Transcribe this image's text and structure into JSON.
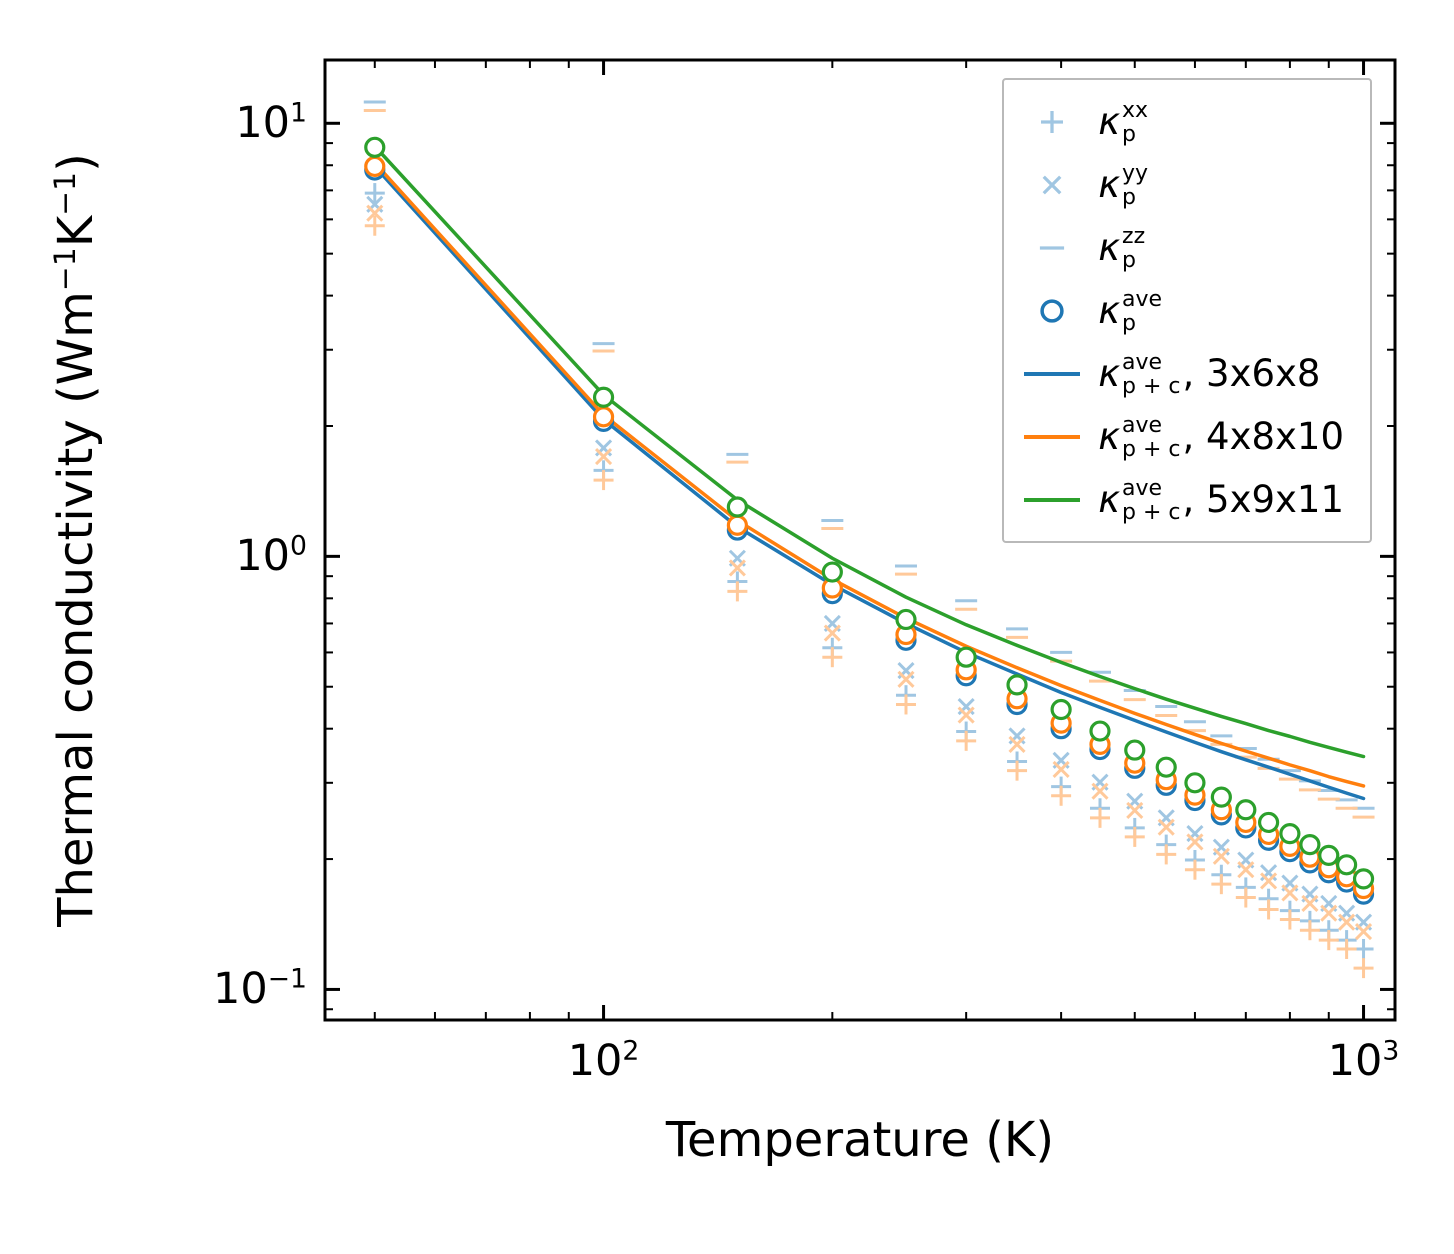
{
  "figure": {
    "xlabel": "Temperature (K)",
    "ylabel_parts": [
      {
        "text": "Thermal conductivity (Wm"
      },
      {
        "sup": "−1"
      },
      {
        "text": "K"
      },
      {
        "sup": "−1"
      },
      {
        "text": ")"
      }
    ],
    "x_ticks": [
      {
        "value": 100,
        "base": "10",
        "exp": "2"
      },
      {
        "value": 1000,
        "base": "10",
        "exp": "3"
      }
    ],
    "y_ticks": [
      {
        "value": 10,
        "base": "10",
        "exp": "1"
      },
      {
        "value": 1,
        "base": "10",
        "exp": "0"
      },
      {
        "value": 0.1,
        "base": "10",
        "exp": "−1"
      }
    ],
    "xlim": [
      43,
      1100
    ],
    "ylim": [
      0.085,
      14
    ]
  },
  "colors": {
    "blue": "#1f77b4",
    "orange": "#ff7f0e",
    "green": "#2ca02c",
    "pale_blue": "#a0c6e2",
    "pale_orange": "#ffc99a",
    "legend_border": "#b9b9b9",
    "axis": "#000000"
  },
  "legend": {
    "items": [
      {
        "marker": "plus",
        "color_key": "pale_blue",
        "kappa": "κ",
        "sup": "xx",
        "sub": "p",
        "suffix": ""
      },
      {
        "marker": "cross",
        "color_key": "pale_blue",
        "kappa": "κ",
        "sup": "yy",
        "sub": "p",
        "suffix": ""
      },
      {
        "marker": "dash",
        "color_key": "pale_blue",
        "kappa": "κ",
        "sup": "zz",
        "sub": "p",
        "suffix": ""
      },
      {
        "marker": "circle",
        "color_key": "blue",
        "kappa": "κ",
        "sup": "ave",
        "sub": "p",
        "suffix": ""
      },
      {
        "marker": "line",
        "color_key": "blue",
        "kappa": "κ",
        "sup": "ave",
        "sub": "p + c",
        "suffix": ", 3x6x8"
      },
      {
        "marker": "line",
        "color_key": "orange",
        "kappa": "κ",
        "sup": "ave",
        "sub": "p + c",
        "suffix": ", 4x8x10"
      },
      {
        "marker": "line",
        "color_key": "green",
        "kappa": "κ",
        "sup": "ave",
        "sub": "p + c",
        "suffix": ", 5x9x11"
      }
    ]
  },
  "chart_data": {
    "type": "scatter",
    "title": "",
    "xlabel": "Temperature (K)",
    "ylabel": "Thermal conductivity (Wm^-1 K^-1)",
    "x_scale": "log",
    "y_scale": "log",
    "xlim": [
      43,
      1100
    ],
    "ylim": [
      0.085,
      14
    ],
    "grid": false,
    "legend_position": "upper right",
    "x": [
      50,
      100,
      150,
      200,
      250,
      300,
      350,
      400,
      450,
      500,
      550,
      600,
      650,
      700,
      750,
      800,
      850,
      900,
      950,
      1000
    ],
    "series": [
      {
        "name": "kappa_p_xx_pale_blue",
        "style": "marker",
        "marker": "plus",
        "color_key": "pale_blue",
        "values": [
          6.9,
          1.58,
          0.875,
          0.615,
          0.478,
          0.394,
          0.336,
          0.294,
          0.262,
          0.236,
          0.216,
          0.199,
          0.184,
          0.172,
          0.162,
          0.152,
          0.144,
          0.137,
          0.13,
          0.124
        ]
      },
      {
        "name": "kappa_p_xx_pale_orange",
        "style": "marker",
        "marker": "plus",
        "color_key": "pale_orange",
        "values": [
          5.8,
          1.5,
          0.83,
          0.585,
          0.455,
          0.375,
          0.32,
          0.28,
          0.249,
          0.225,
          0.205,
          0.189,
          0.175,
          0.163,
          0.153,
          0.145,
          0.137,
          0.13,
          0.124,
          0.112
        ]
      },
      {
        "name": "kappa_p_yy_pale_blue",
        "style": "marker",
        "marker": "cross",
        "color_key": "pale_blue",
        "values": [
          6.5,
          1.78,
          0.99,
          0.7,
          0.545,
          0.45,
          0.385,
          0.338,
          0.301,
          0.272,
          0.249,
          0.229,
          0.213,
          0.199,
          0.186,
          0.176,
          0.166,
          0.158,
          0.15,
          0.143
        ]
      },
      {
        "name": "kappa_p_yy_pale_orange",
        "style": "marker",
        "marker": "cross",
        "color_key": "pale_orange",
        "values": [
          6.2,
          1.7,
          0.94,
          0.665,
          0.52,
          0.43,
          0.368,
          0.322,
          0.287,
          0.259,
          0.237,
          0.219,
          0.203,
          0.189,
          0.178,
          0.167,
          0.158,
          0.15,
          0.143,
          0.136
        ]
      },
      {
        "name": "kappa_p_zz_pale_blue",
        "style": "marker",
        "marker": "dash",
        "color_key": "pale_blue",
        "values": [
          11.2,
          3.1,
          1.72,
          1.21,
          0.95,
          0.79,
          0.68,
          0.6,
          0.54,
          0.49,
          0.45,
          0.415,
          0.385,
          0.36,
          0.34,
          0.32,
          0.303,
          0.288,
          0.274,
          0.262
        ]
      },
      {
        "name": "kappa_p_zz_pale_orange",
        "style": "marker",
        "marker": "dash",
        "color_key": "pale_orange",
        "values": [
          10.7,
          2.98,
          1.65,
          1.16,
          0.91,
          0.755,
          0.65,
          0.573,
          0.515,
          0.467,
          0.429,
          0.396,
          0.368,
          0.344,
          0.324,
          0.306,
          0.289,
          0.275,
          0.262,
          0.25
        ]
      },
      {
        "name": "kappa_p+c_ave_3x6x8_line",
        "style": "line",
        "color_key": "blue",
        "values": [
          7.95,
          2.07,
          1.17,
          0.86,
          0.7,
          0.6,
          0.535,
          0.485,
          0.448,
          0.418,
          0.393,
          0.372,
          0.354,
          0.339,
          0.326,
          0.314,
          0.303,
          0.293,
          0.284,
          0.276
        ]
      },
      {
        "name": "kappa_p+c_ave_4x8x10_line",
        "style": "line",
        "color_key": "orange",
        "values": [
          8.1,
          2.12,
          1.21,
          0.885,
          0.72,
          0.62,
          0.553,
          0.503,
          0.465,
          0.434,
          0.409,
          0.388,
          0.37,
          0.355,
          0.342,
          0.33,
          0.32,
          0.31,
          0.302,
          0.295
        ]
      },
      {
        "name": "kappa_p+c_ave_5x9x11_line",
        "style": "line",
        "color_key": "green",
        "values": [
          8.85,
          2.36,
          1.35,
          0.99,
          0.805,
          0.695,
          0.623,
          0.569,
          0.528,
          0.495,
          0.468,
          0.446,
          0.427,
          0.411,
          0.396,
          0.384,
          0.372,
          0.362,
          0.353,
          0.345
        ]
      },
      {
        "name": "kappa_p_ave_blue_circles",
        "style": "marker",
        "marker": "circle",
        "color_key": "blue",
        "values": [
          7.8,
          2.05,
          1.15,
          0.82,
          0.64,
          0.53,
          0.455,
          0.4,
          0.358,
          0.324,
          0.296,
          0.273,
          0.253,
          0.236,
          0.221,
          0.208,
          0.196,
          0.186,
          0.177,
          0.166
        ]
      },
      {
        "name": "kappa_p_ave_orange_circles",
        "style": "marker",
        "marker": "circle",
        "color_key": "orange",
        "values": [
          7.95,
          2.1,
          1.18,
          0.845,
          0.66,
          0.547,
          0.469,
          0.412,
          0.368,
          0.333,
          0.305,
          0.281,
          0.26,
          0.243,
          0.228,
          0.214,
          0.202,
          0.191,
          0.182,
          0.171
        ]
      },
      {
        "name": "kappa_p_ave_green_circles",
        "style": "marker",
        "marker": "circle",
        "color_key": "green",
        "values": [
          8.8,
          2.33,
          1.3,
          0.92,
          0.715,
          0.585,
          0.505,
          0.443,
          0.395,
          0.357,
          0.326,
          0.3,
          0.278,
          0.26,
          0.243,
          0.229,
          0.216,
          0.204,
          0.194,
          0.18
        ]
      }
    ]
  }
}
